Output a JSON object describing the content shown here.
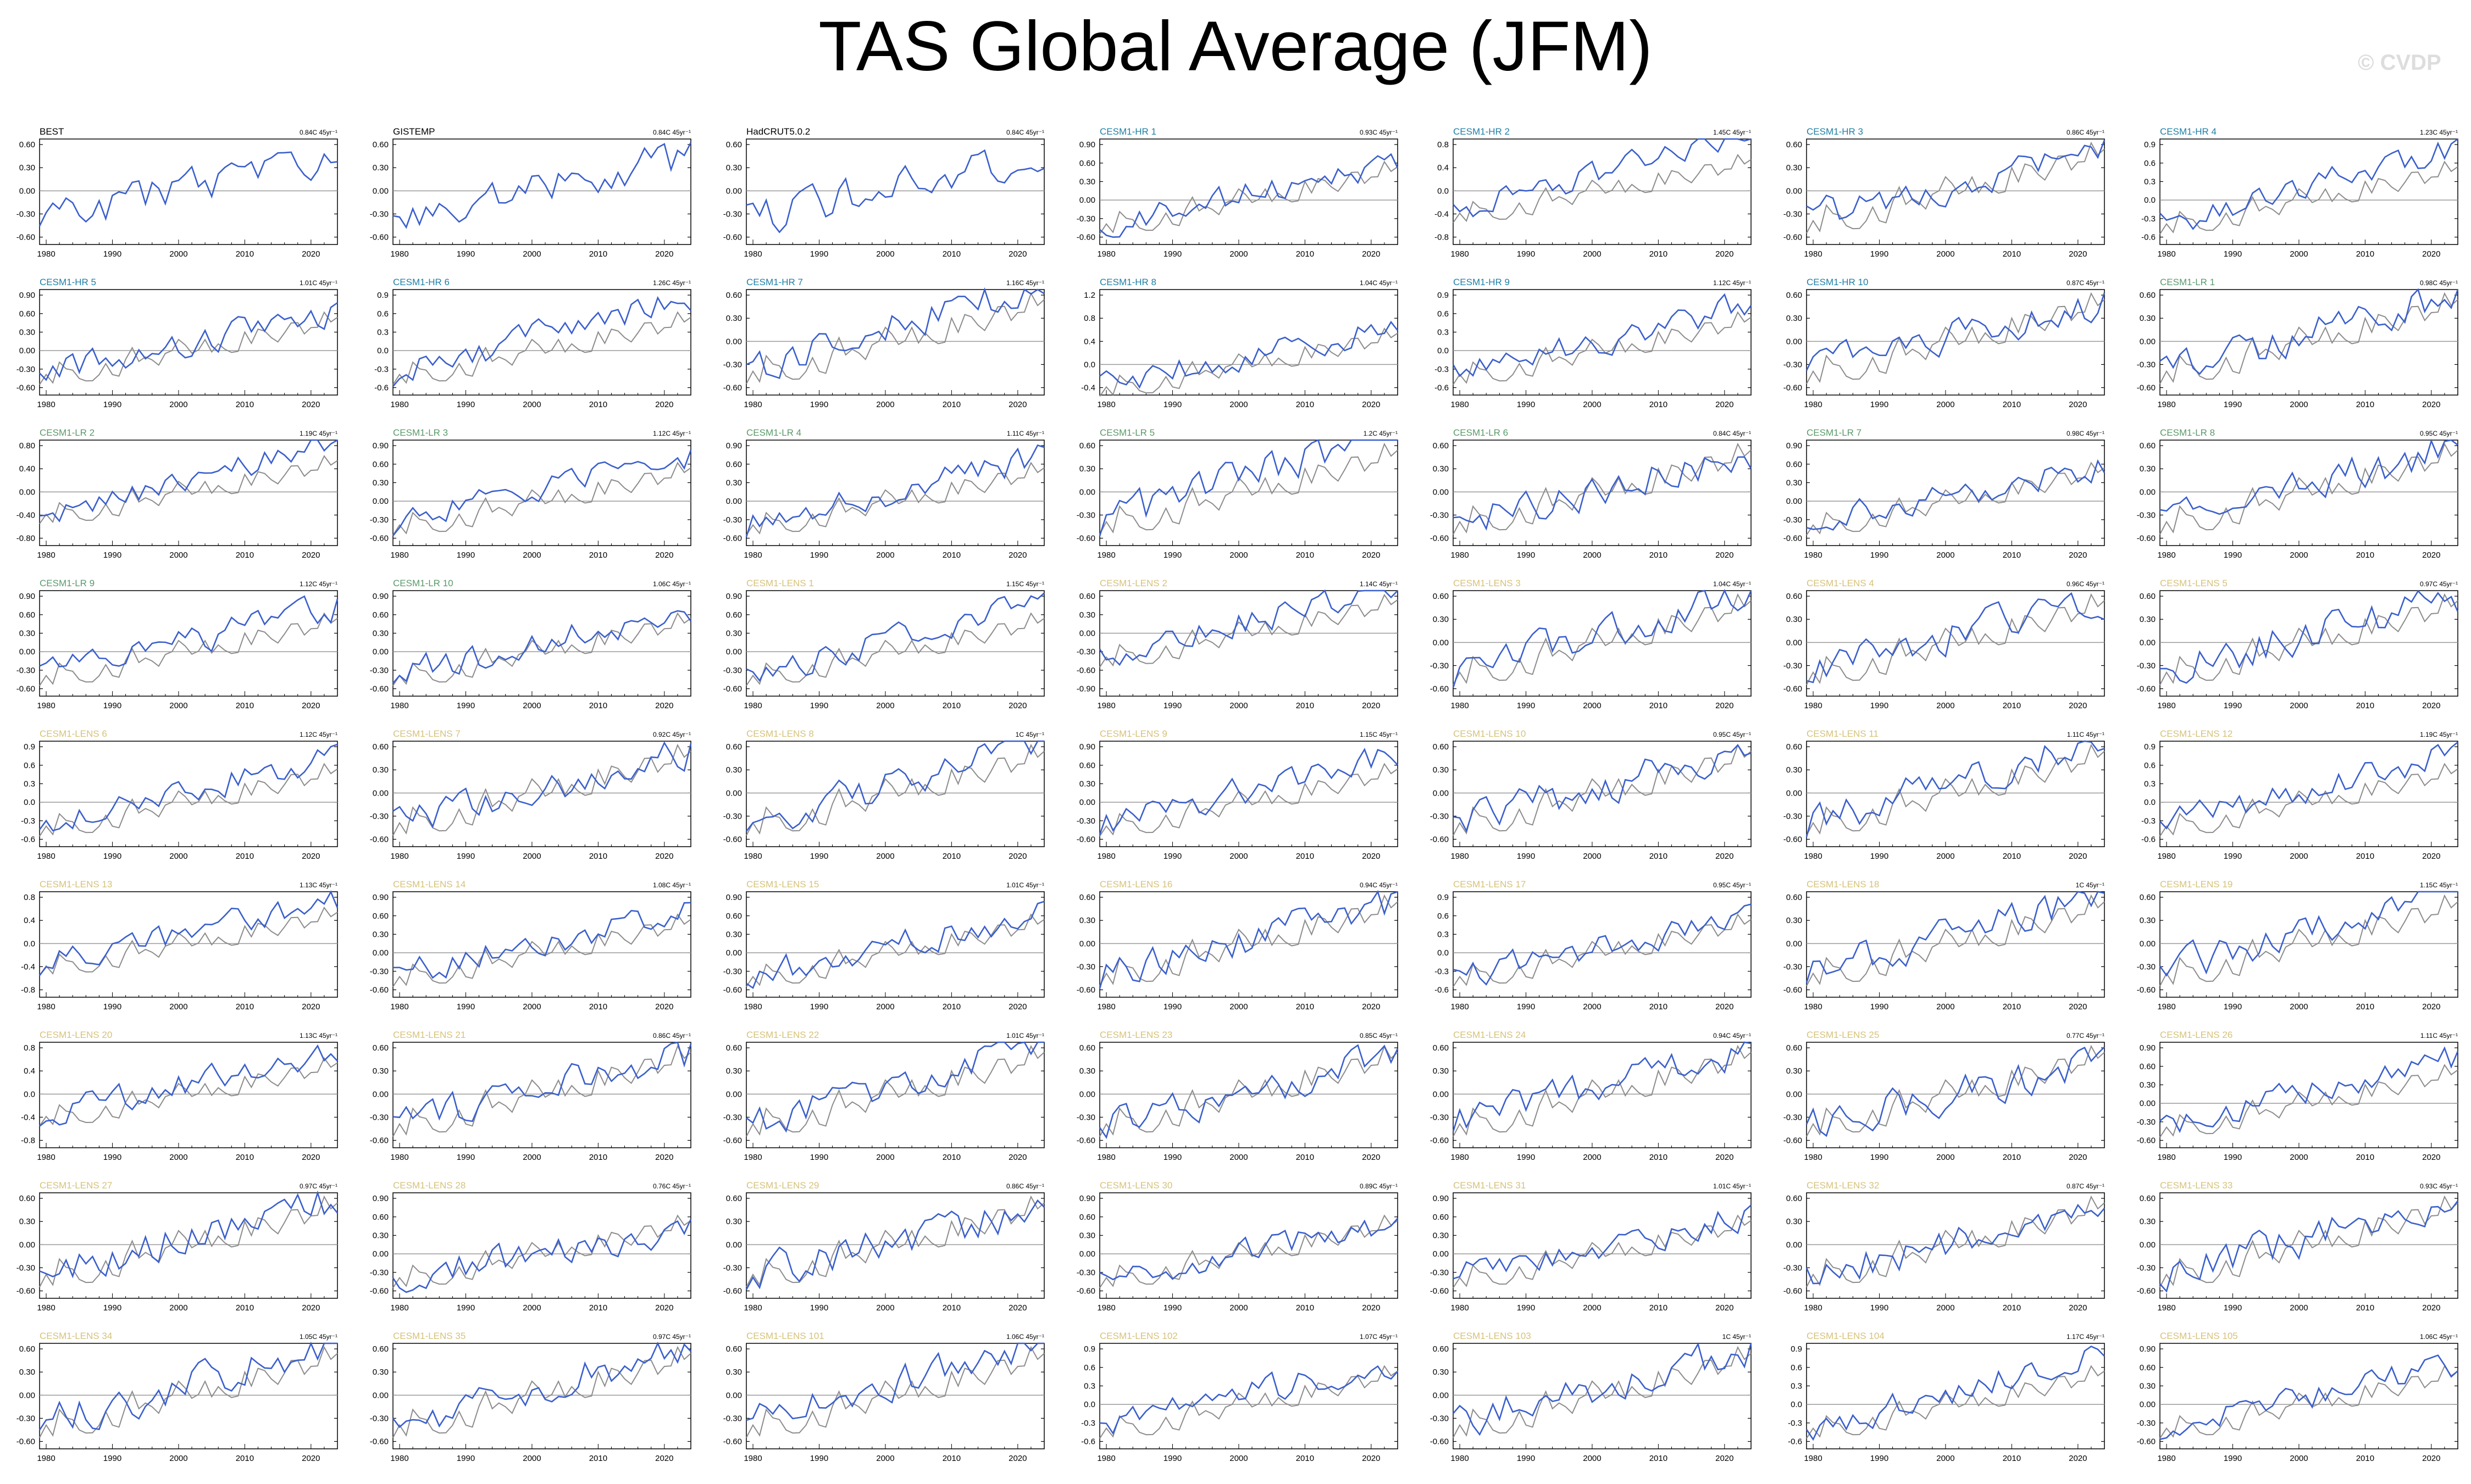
{
  "title": "TAS Global Average (JFM)",
  "watermark": "© CVDP",
  "colors": {
    "observations_label": "#000000",
    "cesm1_hr_label": "#1f7fa6",
    "cesm1_lr_label": "#5a9a6a",
    "cesm1_lens_label": "#d6c27a",
    "model_line": "#3a5fcd",
    "observation_line": "#8c8c8c",
    "zero_line": "#9a9a9a"
  },
  "chart_data": {
    "type": "line",
    "layout": "small multiples, 7 columns x 9 rows",
    "x_ticks": [
      1980,
      1990,
      2000,
      2010,
      2020
    ],
    "xlim": [
      1979,
      2024
    ],
    "series_legend": "blue = dataset named in panel title; grey = observations",
    "trend_unit": "45yr⁻¹",
    "panels": [
      {
        "name": "BEST",
        "group": "obs",
        "trend": "0.84C",
        "yticks": [
          "0.60",
          "0.30",
          "0.00",
          "-0.30",
          "-0.60"
        ],
        "seed": 1
      },
      {
        "name": "GISTEMP",
        "group": "obs",
        "trend": "0.84C",
        "yticks": [
          "0.60",
          "0.30",
          "0.00",
          "-0.30",
          "-0.60"
        ],
        "seed": 2
      },
      {
        "name": "HadCRUT5.0.2",
        "group": "obs",
        "trend": "0.84C",
        "yticks": [
          "0.60",
          "0.30",
          "0.00",
          "-0.30",
          "-0.60"
        ],
        "seed": 3
      },
      {
        "name": "CESM1-HR 1",
        "group": "hr",
        "trend": "0.93C",
        "yticks": [
          "0.90",
          "0.60",
          "0.30",
          "0.00",
          "-0.30",
          "-0.60"
        ],
        "seed": 4
      },
      {
        "name": "CESM1-HR 2",
        "group": "hr",
        "trend": "1.45C",
        "yticks": [
          "0.8",
          "0.4",
          "0.0",
          "-0.4",
          "-0.8"
        ],
        "seed": 5
      },
      {
        "name": "CESM1-HR 3",
        "group": "hr",
        "trend": "0.86C",
        "yticks": [
          "0.60",
          "0.30",
          "0.00",
          "-0.30",
          "-0.60"
        ],
        "seed": 6
      },
      {
        "name": "CESM1-HR 4",
        "group": "hr",
        "trend": "1.23C",
        "yticks": [
          "0.9",
          "0.6",
          "0.3",
          "0.0",
          "-0.3",
          "-0.6"
        ],
        "seed": 7
      },
      {
        "name": "CESM1-HR 5",
        "group": "hr",
        "trend": "1.01C",
        "yticks": [
          "0.90",
          "0.60",
          "0.30",
          "0.00",
          "-0.30",
          "-0.60"
        ],
        "seed": 8
      },
      {
        "name": "CESM1-HR 6",
        "group": "hr",
        "trend": "1.26C",
        "yticks": [
          "0.9",
          "0.6",
          "0.3",
          "0.0",
          "-0.3",
          "-0.6"
        ],
        "seed": 9
      },
      {
        "name": "CESM1-HR 7",
        "group": "hr",
        "trend": "1.16C",
        "yticks": [
          "0.60",
          "0.30",
          "0.00",
          "-0.30",
          "-0.60"
        ],
        "seed": 10
      },
      {
        "name": "CESM1-HR 8",
        "group": "hr",
        "trend": "1.04C",
        "yticks": [
          "1.2",
          "0.8",
          "0.4",
          "0.0",
          "-0.4"
        ],
        "seed": 11
      },
      {
        "name": "CESM1-HR 9",
        "group": "hr",
        "trend": "1.12C",
        "yticks": [
          "0.9",
          "0.6",
          "0.3",
          "0.0",
          "-0.3",
          "-0.6"
        ],
        "seed": 12
      },
      {
        "name": "CESM1-HR 10",
        "group": "hr",
        "trend": "0.87C",
        "yticks": [
          "0.60",
          "0.30",
          "0.00",
          "-0.30",
          "-0.60"
        ],
        "seed": 13
      },
      {
        "name": "CESM1-LR 1",
        "group": "lr",
        "trend": "0.98C",
        "yticks": [
          "0.60",
          "0.30",
          "0.00",
          "-0.30",
          "-0.60"
        ],
        "seed": 14
      },
      {
        "name": "CESM1-LR 2",
        "group": "lr",
        "trend": "1.19C",
        "yticks": [
          "0.80",
          "0.40",
          "0.00",
          "-0.40",
          "-0.80"
        ],
        "seed": 15
      },
      {
        "name": "CESM1-LR 3",
        "group": "lr",
        "trend": "1.12C",
        "yticks": [
          "0.90",
          "0.60",
          "0.30",
          "0.00",
          "-0.30",
          "-0.60"
        ],
        "seed": 16
      },
      {
        "name": "CESM1-LR 4",
        "group": "lr",
        "trend": "1.11C",
        "yticks": [
          "0.90",
          "0.60",
          "0.30",
          "0.00",
          "-0.30",
          "-0.60"
        ],
        "seed": 17
      },
      {
        "name": "CESM1-LR 5",
        "group": "lr",
        "trend": "1.2C",
        "yticks": [
          "0.60",
          "0.30",
          "0.00",
          "-0.30",
          "-0.60"
        ],
        "seed": 18
      },
      {
        "name": "CESM1-LR 6",
        "group": "lr",
        "trend": "0.84C",
        "yticks": [
          "0.60",
          "0.30",
          "0.00",
          "-0.30",
          "-0.60"
        ],
        "seed": 19
      },
      {
        "name": "CESM1-LR 7",
        "group": "lr",
        "trend": "0.98C",
        "yticks": [
          "0.90",
          "0.60",
          "0.30",
          "0.00",
          "-0.30",
          "-0.60"
        ],
        "seed": 20
      },
      {
        "name": "CESM1-LR 8",
        "group": "lr",
        "trend": "0.95C",
        "yticks": [
          "0.60",
          "0.30",
          "0.00",
          "-0.30",
          "-0.60"
        ],
        "seed": 21
      },
      {
        "name": "CESM1-LR 9",
        "group": "lr",
        "trend": "1.12C",
        "yticks": [
          "0.90",
          "0.60",
          "0.30",
          "0.00",
          "-0.30",
          "-0.60"
        ],
        "seed": 22
      },
      {
        "name": "CESM1-LR 10",
        "group": "lr",
        "trend": "1.06C",
        "yticks": [
          "0.90",
          "0.60",
          "0.30",
          "0.00",
          "-0.30",
          "-0.60"
        ],
        "seed": 23
      },
      {
        "name": "CESM1-LENS 1",
        "group": "lens",
        "trend": "1.15C",
        "yticks": [
          "0.90",
          "0.60",
          "0.30",
          "0.00",
          "-0.30",
          "-0.60"
        ],
        "seed": 24
      },
      {
        "name": "CESM1-LENS 2",
        "group": "lens",
        "trend": "1.14C",
        "yticks": [
          "0.60",
          "0.30",
          "0.00",
          "-0.30",
          "-0.60",
          "-0.90"
        ],
        "seed": 25
      },
      {
        "name": "CESM1-LENS 3",
        "group": "lens",
        "trend": "1.04C",
        "yticks": [
          "0.60",
          "0.30",
          "0.00",
          "-0.30",
          "-0.60"
        ],
        "seed": 26
      },
      {
        "name": "CESM1-LENS 4",
        "group": "lens",
        "trend": "0.96C",
        "yticks": [
          "0.60",
          "0.30",
          "0.00",
          "-0.30",
          "-0.60"
        ],
        "seed": 27
      },
      {
        "name": "CESM1-LENS 5",
        "group": "lens",
        "trend": "0.97C",
        "yticks": [
          "0.60",
          "0.30",
          "0.00",
          "-0.30",
          "-0.60"
        ],
        "seed": 28
      },
      {
        "name": "CESM1-LENS 6",
        "group": "lens",
        "trend": "1.12C",
        "yticks": [
          "0.9",
          "0.6",
          "0.3",
          "0.0",
          "-0.3",
          "-0.6"
        ],
        "seed": 29
      },
      {
        "name": "CESM1-LENS 7",
        "group": "lens",
        "trend": "0.92C",
        "yticks": [
          "0.60",
          "0.30",
          "0.00",
          "-0.30",
          "-0.60"
        ],
        "seed": 30
      },
      {
        "name": "CESM1-LENS 8",
        "group": "lens",
        "trend": "1C",
        "yticks": [
          "0.60",
          "0.30",
          "0.00",
          "-0.30",
          "-0.60"
        ],
        "seed": 31
      },
      {
        "name": "CESM1-LENS 9",
        "group": "lens",
        "trend": "1.15C",
        "yticks": [
          "0.90",
          "0.60",
          "0.30",
          "0.00",
          "-0.30",
          "-0.60"
        ],
        "seed": 32
      },
      {
        "name": "CESM1-LENS 10",
        "group": "lens",
        "trend": "0.95C",
        "yticks": [
          "0.60",
          "0.30",
          "0.00",
          "-0.30",
          "-0.60"
        ],
        "seed": 33
      },
      {
        "name": "CESM1-LENS 11",
        "group": "lens",
        "trend": "1.11C",
        "yticks": [
          "0.60",
          "0.30",
          "0.00",
          "-0.30",
          "-0.60"
        ],
        "seed": 34
      },
      {
        "name": "CESM1-LENS 12",
        "group": "lens",
        "trend": "1.19C",
        "yticks": [
          "0.9",
          "0.6",
          "0.3",
          "0.0",
          "-0.3",
          "-0.6"
        ],
        "seed": 35
      },
      {
        "name": "CESM1-LENS 13",
        "group": "lens",
        "trend": "1.13C",
        "yticks": [
          "0.8",
          "0.4",
          "0.0",
          "-0.4",
          "-0.8"
        ],
        "seed": 36
      },
      {
        "name": "CESM1-LENS 14",
        "group": "lens",
        "trend": "1.08C",
        "yticks": [
          "0.90",
          "0.60",
          "0.30",
          "0.00",
          "-0.30",
          "-0.60"
        ],
        "seed": 37
      },
      {
        "name": "CESM1-LENS 15",
        "group": "lens",
        "trend": "1.01C",
        "yticks": [
          "0.90",
          "0.60",
          "0.30",
          "0.00",
          "-0.30",
          "-0.60"
        ],
        "seed": 38
      },
      {
        "name": "CESM1-LENS 16",
        "group": "lens",
        "trend": "0.94C",
        "yticks": [
          "0.60",
          "0.30",
          "0.00",
          "-0.30",
          "-0.60"
        ],
        "seed": 39
      },
      {
        "name": "CESM1-LENS 17",
        "group": "lens",
        "trend": "0.95C",
        "yticks": [
          "0.9",
          "0.6",
          "0.3",
          "0.0",
          "-0.3",
          "-0.6"
        ],
        "seed": 40
      },
      {
        "name": "CESM1-LENS 18",
        "group": "lens",
        "trend": "1C",
        "yticks": [
          "0.60",
          "0.30",
          "0.00",
          "-0.30",
          "-0.60"
        ],
        "seed": 41
      },
      {
        "name": "CESM1-LENS 19",
        "group": "lens",
        "trend": "1.15C",
        "yticks": [
          "0.60",
          "0.30",
          "0.00",
          "-0.30",
          "-0.60"
        ],
        "seed": 42
      },
      {
        "name": "CESM1-LENS 20",
        "group": "lens",
        "trend": "1.13C",
        "yticks": [
          "0.8",
          "0.4",
          "0.0",
          "-0.4",
          "-0.8"
        ],
        "seed": 43
      },
      {
        "name": "CESM1-LENS 21",
        "group": "lens",
        "trend": "0.86C",
        "yticks": [
          "0.60",
          "0.30",
          "0.00",
          "-0.30",
          "-0.60"
        ],
        "seed": 44
      },
      {
        "name": "CESM1-LENS 22",
        "group": "lens",
        "trend": "1.01C",
        "yticks": [
          "0.60",
          "0.30",
          "0.00",
          "-0.30",
          "-0.60"
        ],
        "seed": 45
      },
      {
        "name": "CESM1-LENS 23",
        "group": "lens",
        "trend": "0.85C",
        "yticks": [
          "0.60",
          "0.30",
          "0.00",
          "-0.30",
          "-0.60"
        ],
        "seed": 46
      },
      {
        "name": "CESM1-LENS 24",
        "group": "lens",
        "trend": "0.94C",
        "yticks": [
          "0.60",
          "0.30",
          "0.00",
          "-0.30",
          "-0.60"
        ],
        "seed": 47
      },
      {
        "name": "CESM1-LENS 25",
        "group": "lens",
        "trend": "0.77C",
        "yticks": [
          "0.60",
          "0.30",
          "0.00",
          "-0.30",
          "-0.60"
        ],
        "seed": 48
      },
      {
        "name": "CESM1-LENS 26",
        "group": "lens",
        "trend": "1.11C",
        "yticks": [
          "0.90",
          "0.60",
          "0.30",
          "0.00",
          "-0.30",
          "-0.60"
        ],
        "seed": 49
      },
      {
        "name": "CESM1-LENS 27",
        "group": "lens",
        "trend": "0.97C",
        "yticks": [
          "0.60",
          "0.30",
          "0.00",
          "-0.30",
          "-0.60"
        ],
        "seed": 50
      },
      {
        "name": "CESM1-LENS 28",
        "group": "lens",
        "trend": "0.76C",
        "yticks": [
          "0.90",
          "0.60",
          "0.30",
          "0.00",
          "-0.30",
          "-0.60"
        ],
        "seed": 51
      },
      {
        "name": "CESM1-LENS 29",
        "group": "lens",
        "trend": "0.86C",
        "yticks": [
          "0.60",
          "0.30",
          "0.00",
          "-0.30",
          "-0.60"
        ],
        "seed": 52
      },
      {
        "name": "CESM1-LENS 30",
        "group": "lens",
        "trend": "0.89C",
        "yticks": [
          "0.90",
          "0.60",
          "0.30",
          "0.00",
          "-0.30",
          "-0.60"
        ],
        "seed": 53
      },
      {
        "name": "CESM1-LENS 31",
        "group": "lens",
        "trend": "1.01C",
        "yticks": [
          "0.90",
          "0.60",
          "0.30",
          "0.00",
          "-0.30",
          "-0.60"
        ],
        "seed": 54
      },
      {
        "name": "CESM1-LENS 32",
        "group": "lens",
        "trend": "0.87C",
        "yticks": [
          "0.60",
          "0.30",
          "0.00",
          "-0.30",
          "-0.60"
        ],
        "seed": 55
      },
      {
        "name": "CESM1-LENS 33",
        "group": "lens",
        "trend": "0.93C",
        "yticks": [
          "0.60",
          "0.30",
          "0.00",
          "-0.30",
          "-0.60"
        ],
        "seed": 56
      },
      {
        "name": "CESM1-LENS 34",
        "group": "lens",
        "trend": "1.05C",
        "yticks": [
          "0.60",
          "0.30",
          "0.00",
          "-0.30",
          "-0.60"
        ],
        "seed": 57
      },
      {
        "name": "CESM1-LENS 35",
        "group": "lens",
        "trend": "0.97C",
        "yticks": [
          "0.60",
          "0.30",
          "0.00",
          "-0.30",
          "-0.60"
        ],
        "seed": 58
      },
      {
        "name": "CESM1-LENS 101",
        "group": "lens",
        "trend": "1.06C",
        "yticks": [
          "0.60",
          "0.30",
          "0.00",
          "-0.30",
          "-0.60"
        ],
        "seed": 59
      },
      {
        "name": "CESM1-LENS 102",
        "group": "lens",
        "trend": "1.07C",
        "yticks": [
          "0.9",
          "0.6",
          "0.3",
          "0.0",
          "-0.3",
          "-0.6"
        ],
        "seed": 60
      },
      {
        "name": "CESM1-LENS 103",
        "group": "lens",
        "trend": "1C",
        "yticks": [
          "0.60",
          "0.30",
          "0.00",
          "-0.30",
          "-0.60"
        ],
        "seed": 61
      },
      {
        "name": "CESM1-LENS 104",
        "group": "lens",
        "trend": "1.17C",
        "yticks": [
          "0.9",
          "0.6",
          "0.3",
          "0.0",
          "-0.3",
          "-0.6"
        ],
        "seed": 62
      },
      {
        "name": "CESM1-LENS 105",
        "group": "lens",
        "trend": "1.06C",
        "yticks": [
          "0.90",
          "0.60",
          "0.30",
          "0.00",
          "-0.30",
          "-0.60"
        ],
        "seed": 63
      }
    ]
  }
}
